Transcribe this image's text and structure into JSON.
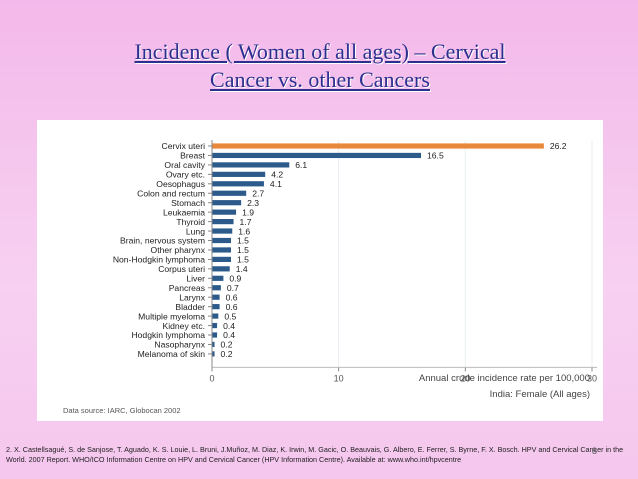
{
  "slide": {
    "title_line1": "Incidence ( Women of all ages) – Cervical",
    "title_line2": "Cancer vs. other Cancers",
    "footnote": "2. X. Castellsagué, S. de Sanjose, T. Aguado, K. S. Louie, L. Bruni, J.Muñoz, M. Diaz, K. Irwin, M. Gacic, O. Beauvais, G. Albero, E. Ferrer, S. Byrne, F. X. Bosch. HPV and Cervical Cancer in the World. 2007 Report. WHO/ICO Information Centre on HPV and Cervical Cancer (HPV Information Centre). Available at: www.who.int/hpvcentre",
    "slide_number": "8"
  },
  "chart_data": {
    "type": "bar",
    "orientation": "horizontal",
    "categories": [
      "Cervix uteri",
      "Breast",
      "Oral cavity",
      "Ovary etc.",
      "Oesophagus",
      "Colon and rectum",
      "Stomach",
      "Leukaemia",
      "Thyroid",
      "Lung",
      "Brain, nervous system",
      "Other pharynx",
      "Non-Hodgkin lymphoma",
      "Corpus uteri",
      "Liver",
      "Pancreas",
      "Larynx",
      "Bladder",
      "Multiple myeloma",
      "Kidney etc.",
      "Hodgkin lymphoma",
      "Nasopharynx",
      "Melanoma of skin"
    ],
    "values": [
      26.2,
      16.5,
      6.1,
      4.2,
      4.1,
      2.7,
      2.3,
      1.9,
      1.7,
      1.6,
      1.5,
      1.5,
      1.5,
      1.4,
      0.9,
      0.7,
      0.6,
      0.6,
      0.5,
      0.4,
      0.4,
      0.2,
      0.2
    ],
    "value_labels": [
      "26.2",
      "16.5",
      "6.1",
      "4.2",
      "4.1",
      "2.7",
      "2.3",
      "1.9",
      "1.7",
      "1.6",
      "1.5",
      "1.5",
      "1.5",
      "1.4",
      "0.9",
      "0.7",
      "0.6",
      "0.6",
      "0.5",
      "0.4",
      "0.4",
      "0.2",
      "0.2"
    ],
    "highlight_index": 0,
    "colors": {
      "highlight": "#e8883a",
      "default": "#2c5a8a",
      "grid": "#e8eef2",
      "axis_text": "#555555"
    },
    "xlim": [
      0,
      30
    ],
    "xticks": [
      "0",
      "10",
      "20",
      "30"
    ],
    "xlabel": "Annual crude incidence rate per 100,000",
    "subtitle": "India: Female (All ages)",
    "source": "Data source: IARC, Globocan 2002",
    "grid": true
  }
}
